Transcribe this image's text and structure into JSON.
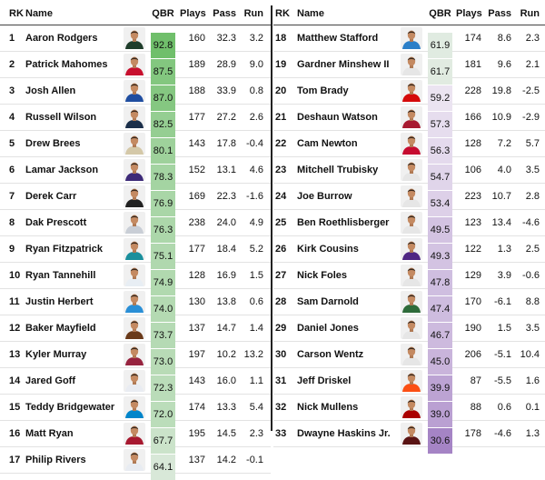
{
  "headers": {
    "rk": "RK",
    "name": "Name",
    "qbr": "QBR",
    "plays": "Plays",
    "pass": "Pass",
    "run": "Run"
  },
  "colors": {
    "qbr_high": "#6fbf6a",
    "qbr_low": "#a482c4",
    "neutral": "#f7f4f9"
  },
  "left_rows": [
    {
      "rk": "1",
      "name": "Aaron Rodgers",
      "qbr": "92.8",
      "plays": "160",
      "pass": "32.3",
      "run": "3.2",
      "icon": "player-headshot-icon",
      "jersey": "#1f3d2b"
    },
    {
      "rk": "2",
      "name": "Patrick Mahomes",
      "qbr": "87.5",
      "plays": "189",
      "pass": "28.9",
      "run": "9.0",
      "icon": "player-headshot-icon",
      "jersey": "#c8102e"
    },
    {
      "rk": "3",
      "name": "Josh Allen",
      "qbr": "87.0",
      "plays": "188",
      "pass": "33.9",
      "run": "0.8",
      "icon": "player-headshot-icon",
      "jersey": "#1f4da0"
    },
    {
      "rk": "4",
      "name": "Russell Wilson",
      "qbr": "82.5",
      "plays": "177",
      "pass": "27.2",
      "run": "2.6",
      "icon": "player-headshot-icon",
      "jersey": "#1b2f4a"
    },
    {
      "rk": "5",
      "name": "Drew Brees",
      "qbr": "80.1",
      "plays": "143",
      "pass": "17.8",
      "run": "-0.4",
      "icon": "player-headshot-icon",
      "jersey": "#d4c8a8"
    },
    {
      "rk": "6",
      "name": "Lamar Jackson",
      "qbr": "78.3",
      "plays": "152",
      "pass": "13.1",
      "run": "4.6",
      "icon": "player-headshot-icon",
      "jersey": "#3d2a78"
    },
    {
      "rk": "7",
      "name": "Derek Carr",
      "qbr": "76.9",
      "plays": "169",
      "pass": "22.3",
      "run": "-1.6",
      "icon": "player-headshot-icon",
      "jersey": "#222222"
    },
    {
      "rk": "8",
      "name": "Dak Prescott",
      "qbr": "76.3",
      "plays": "238",
      "pass": "24.0",
      "run": "4.9",
      "icon": "player-headshot-icon",
      "jersey": "#c9ced6"
    },
    {
      "rk": "9",
      "name": "Ryan Fitzpatrick",
      "qbr": "75.1",
      "plays": "177",
      "pass": "18.4",
      "run": "5.2",
      "icon": "player-headshot-icon",
      "jersey": "#1a8f9c"
    },
    {
      "rk": "10",
      "name": "Ryan Tannehill",
      "qbr": "74.9",
      "plays": "128",
      "pass": "16.9",
      "run": "1.5",
      "icon": "player-headshot-icon",
      "jersey": "#e8eef4"
    },
    {
      "rk": "11",
      "name": "Justin Herbert",
      "qbr": "74.0",
      "plays": "130",
      "pass": "13.8",
      "run": "0.6",
      "icon": "player-headshot-icon",
      "jersey": "#2a8fd6"
    },
    {
      "rk": "12",
      "name": "Baker Mayfield",
      "qbr": "73.7",
      "plays": "137",
      "pass": "14.7",
      "run": "1.4",
      "icon": "player-headshot-icon",
      "jersey": "#6a3a1a"
    },
    {
      "rk": "13",
      "name": "Kyler Murray",
      "qbr": "73.0",
      "plays": "197",
      "pass": "10.2",
      "run": "13.2",
      "icon": "player-headshot-icon",
      "jersey": "#97233f"
    },
    {
      "rk": "14",
      "name": "Jared Goff",
      "qbr": "72.3",
      "plays": "143",
      "pass": "16.0",
      "run": "1.1",
      "icon": "player-headshot-icon",
      "jersey": "#e9ecf2"
    },
    {
      "rk": "15",
      "name": "Teddy Bridgewater",
      "qbr": "72.0",
      "plays": "174",
      "pass": "13.3",
      "run": "5.4",
      "icon": "player-headshot-icon",
      "jersey": "#0085ca"
    },
    {
      "rk": "16",
      "name": "Matt Ryan",
      "qbr": "67.7",
      "plays": "195",
      "pass": "14.5",
      "run": "2.3",
      "icon": "player-headshot-icon",
      "jersey": "#a71930"
    },
    {
      "rk": "17",
      "name": "Philip Rivers",
      "qbr": "64.1",
      "plays": "137",
      "pass": "14.2",
      "run": "-0.1",
      "icon": "player-headshot-icon",
      "jersey": "#e8ecf2"
    }
  ],
  "right_rows": [
    {
      "rk": "18",
      "name": "Matthew Stafford",
      "qbr": "61.9",
      "plays": "174",
      "pass": "8.6",
      "run": "2.3",
      "icon": "player-headshot-icon",
      "jersey": "#2b7fc8"
    },
    {
      "rk": "19",
      "name": "Gardner Minshew II",
      "qbr": "61.7",
      "plays": "181",
      "pass": "9.6",
      "run": "2.1",
      "icon": "player-headshot-icon",
      "jersey": "#e6e6e6"
    },
    {
      "rk": "20",
      "name": "Tom Brady",
      "qbr": "59.2",
      "plays": "228",
      "pass": "19.8",
      "run": "-2.5",
      "icon": "player-headshot-icon",
      "jersey": "#d50a0a"
    },
    {
      "rk": "21",
      "name": "Deshaun Watson",
      "qbr": "57.3",
      "plays": "166",
      "pass": "10.9",
      "run": "-2.9",
      "icon": "player-headshot-icon",
      "jersey": "#a71930"
    },
    {
      "rk": "22",
      "name": "Cam Newton",
      "qbr": "56.3",
      "plays": "128",
      "pass": "7.2",
      "run": "5.7",
      "icon": "player-headshot-icon",
      "jersey": "#c60c30"
    },
    {
      "rk": "23",
      "name": "Mitchell Trubisky",
      "qbr": "54.7",
      "plays": "106",
      "pass": "4.0",
      "run": "3.5",
      "icon": "player-headshot-icon",
      "jersey": "#e6e6e6"
    },
    {
      "rk": "24",
      "name": "Joe Burrow",
      "qbr": "53.4",
      "plays": "223",
      "pass": "10.7",
      "run": "2.8",
      "icon": "player-headshot-icon",
      "jersey": "#e6e6e6"
    },
    {
      "rk": "25",
      "name": "Ben Roethlisberger",
      "qbr": "49.5",
      "plays": "123",
      "pass": "13.4",
      "run": "-4.6",
      "icon": "player-headshot-icon",
      "jersey": "#e6e6e6"
    },
    {
      "rk": "26",
      "name": "Kirk Cousins",
      "qbr": "49.3",
      "plays": "122",
      "pass": "1.3",
      "run": "2.5",
      "icon": "player-headshot-icon",
      "jersey": "#4f2683"
    },
    {
      "rk": "27",
      "name": "Nick Foles",
      "qbr": "47.8",
      "plays": "129",
      "pass": "3.9",
      "run": "-0.6",
      "icon": "player-headshot-icon",
      "jersey": "#e6e6e6"
    },
    {
      "rk": "28",
      "name": "Sam Darnold",
      "qbr": "47.4",
      "plays": "170",
      "pass": "-6.1",
      "run": "8.8",
      "icon": "player-headshot-icon",
      "jersey": "#2e6b3a"
    },
    {
      "rk": "29",
      "name": "Daniel Jones",
      "qbr": "46.7",
      "plays": "190",
      "pass": "1.5",
      "run": "3.5",
      "icon": "player-headshot-icon",
      "jersey": "#e6e6e6"
    },
    {
      "rk": "30",
      "name": "Carson Wentz",
      "qbr": "45.0",
      "plays": "206",
      "pass": "-5.1",
      "run": "10.4",
      "icon": "player-headshot-icon",
      "jersey": "#e6e6e6"
    },
    {
      "rk": "31",
      "name": "Jeff Driskel",
      "qbr": "39.9",
      "plays": "87",
      "pass": "-5.5",
      "run": "1.6",
      "icon": "player-headshot-icon",
      "jersey": "#fb4f14"
    },
    {
      "rk": "32",
      "name": "Nick Mullens",
      "qbr": "39.0",
      "plays": "88",
      "pass": "0.6",
      "run": "0.1",
      "icon": "player-headshot-icon",
      "jersey": "#aa0000"
    },
    {
      "rk": "33",
      "name": "Dwayne Haskins Jr.",
      "qbr": "30.6",
      "plays": "178",
      "pass": "-4.6",
      "run": "1.3",
      "icon": "player-headshot-icon",
      "jersey": "#5a1414"
    }
  ]
}
